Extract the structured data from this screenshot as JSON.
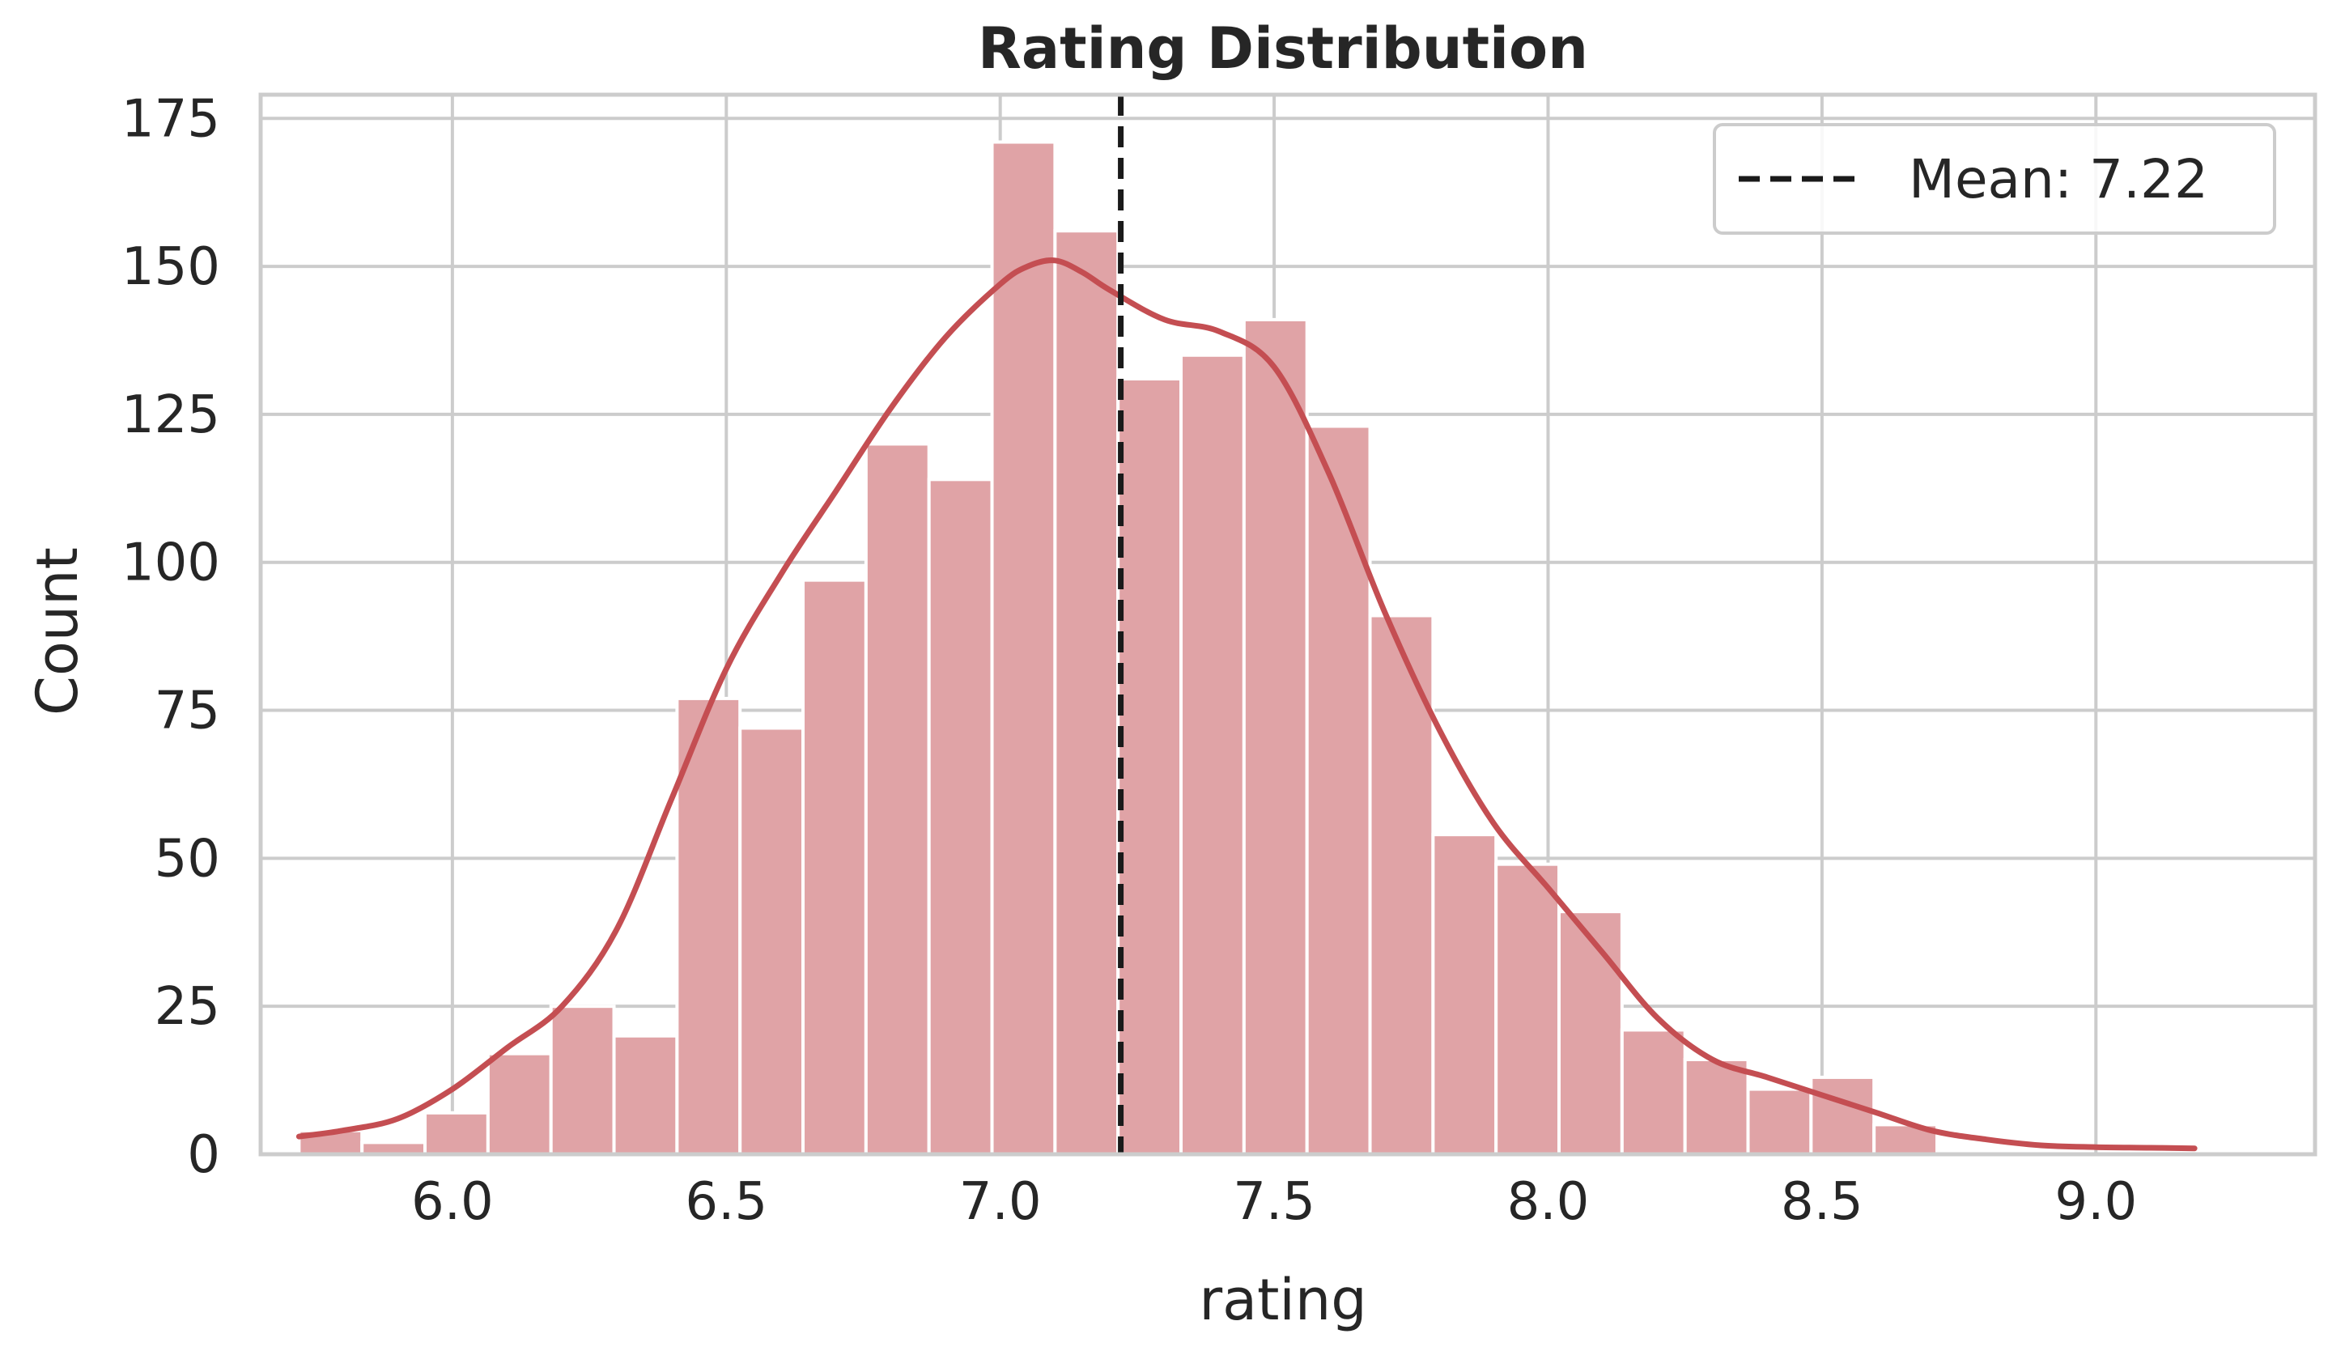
{
  "chart_data": {
    "type": "histogram",
    "title": "Rating Distribution",
    "xlabel": "rating",
    "ylabel": "Count",
    "xlim": [
      5.65,
      9.4
    ],
    "ylim": [
      0,
      179
    ],
    "xticks": [
      6.0,
      6.5,
      7.0,
      7.5,
      8.0,
      8.5,
      9.0
    ],
    "xtick_labels": [
      "6.0",
      "6.5",
      "7.0",
      "7.5",
      "8.0",
      "8.5",
      "9.0"
    ],
    "yticks": [
      0,
      25,
      50,
      75,
      100,
      125,
      150,
      175
    ],
    "ytick_labels": [
      "0",
      "25",
      "50",
      "75",
      "100",
      "125",
      "150",
      "175"
    ],
    "grid": true,
    "bin_start": 5.72,
    "bin_width": 0.115,
    "counts": [
      4,
      2,
      7,
      17,
      25,
      20,
      77,
      72,
      97,
      120,
      114,
      171,
      156,
      131,
      135,
      141,
      123,
      91,
      54,
      49,
      41,
      21,
      16,
      11,
      13,
      5,
      0,
      0,
      0,
      0
    ],
    "kde": {
      "x": [
        5.72,
        5.8,
        5.9,
        6.0,
        6.1,
        6.2,
        6.3,
        6.4,
        6.5,
        6.6,
        6.7,
        6.8,
        6.9,
        7.0,
        7.05,
        7.1,
        7.15,
        7.2,
        7.3,
        7.4,
        7.5,
        7.6,
        7.7,
        7.8,
        7.9,
        8.0,
        8.1,
        8.2,
        8.3,
        8.4,
        8.5,
        8.6,
        8.7,
        8.8,
        8.9,
        9.0,
        9.1,
        9.18
      ],
      "y": [
        3,
        4,
        6,
        11,
        18,
        25,
        38,
        60,
        82,
        98,
        112,
        126,
        138,
        147,
        150,
        151,
        149,
        146,
        141,
        139,
        133,
        115,
        92,
        72,
        56,
        45,
        34,
        23,
        16,
        13,
        10,
        7,
        4,
        2.5,
        1.5,
        1.2,
        1.1,
        1
      ]
    },
    "mean": 7.22,
    "legend": {
      "label": "Mean: 7.22",
      "position": "top-right"
    },
    "colors": {
      "bar_fill": "#e0a3a6",
      "bar_edge": "#ffffff",
      "kde_line": "#c44e52",
      "mean_line": "#1a1a1a",
      "grid": "#cccccc",
      "spine": "#cccccc"
    }
  }
}
